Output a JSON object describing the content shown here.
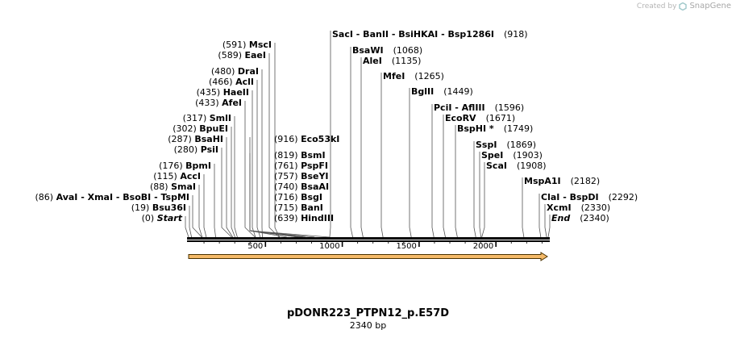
{
  "credit": {
    "prefix": "Created by",
    "brand": "SnapGene"
  },
  "map": {
    "title": "pDONR223_PTPN12_p.E57D",
    "length_label": "2340 bp",
    "length_bp": 2340,
    "ticks": [
      500,
      1000,
      1500,
      2000
    ],
    "colors": {
      "backbone": "#000000",
      "arrow_fill": "#f4b968",
      "arrow_stroke": "#4a3200",
      "leader": "#555555"
    }
  },
  "chart_data": {
    "type": "restriction-map",
    "title": "pDONR223_PTPN12_p.E57D",
    "subtitle": "2340 bp",
    "x_range_bp": [
      0,
      2340
    ],
    "axis_ticks": [
      500,
      1000,
      1500,
      2000
    ],
    "features": [
      {
        "name": "arrow",
        "start": 0,
        "end": 2340,
        "direction": "forward"
      }
    ],
    "sites": [
      {
        "pos": 918,
        "label": "SacI   - BanII   - BsiHKAI   - Bsp1286I",
        "num": "(918)",
        "side": "right"
      },
      {
        "pos": 1068,
        "label": "BsaWI",
        "num": "(1068)",
        "side": "right"
      },
      {
        "pos": 1135,
        "label": "AleI",
        "num": "(1135)",
        "side": "right"
      },
      {
        "pos": 1265,
        "label": "MfeI",
        "num": "(1265)",
        "side": "right"
      },
      {
        "pos": 1449,
        "label": "BglII",
        "num": "(1449)",
        "side": "right"
      },
      {
        "pos": 1596,
        "label": "PciI   - AflIII",
        "num": "(1596)",
        "side": "right"
      },
      {
        "pos": 1671,
        "label": "EcoRV",
        "num": "(1671)",
        "side": "right"
      },
      {
        "pos": 1749,
        "label": "BspHI *",
        "num": "(1749)",
        "side": "right"
      },
      {
        "pos": 1869,
        "label": "SspI",
        "num": "(1869)",
        "side": "right"
      },
      {
        "pos": 1903,
        "label": "SpeI",
        "num": "(1903)",
        "side": "right"
      },
      {
        "pos": 1908,
        "label": "ScaI",
        "num": "(1908)",
        "side": "right"
      },
      {
        "pos": 2182,
        "label": "MspA1I",
        "num": "(2182)",
        "side": "right"
      },
      {
        "pos": 2292,
        "label": "ClaI   - BspDI",
        "num": "(2292)",
        "side": "right"
      },
      {
        "pos": 2330,
        "label": "XcmI",
        "num": "(2330)",
        "side": "right"
      },
      {
        "pos": 2340,
        "label": "End",
        "num": "(2340)",
        "side": "right",
        "italic": true
      },
      {
        "pos": 591,
        "label": "MscI",
        "num": "(591)",
        "side": "left"
      },
      {
        "pos": 589,
        "label": "EaeI",
        "num": "(589)",
        "side": "left"
      },
      {
        "pos": 480,
        "label": "DraI",
        "num": "(480)",
        "side": "left"
      },
      {
        "pos": 466,
        "label": "AclI",
        "num": "(466)",
        "side": "left"
      },
      {
        "pos": 435,
        "label": "HaeII",
        "num": "(435)",
        "side": "left"
      },
      {
        "pos": 433,
        "label": "AfeI",
        "num": "(433)",
        "side": "left"
      },
      {
        "pos": 317,
        "label": "SmlI",
        "num": "(317)",
        "side": "left"
      },
      {
        "pos": 302,
        "label": "BpuEI",
        "num": "(302)",
        "side": "left"
      },
      {
        "pos": 287,
        "label": "BsaHI",
        "num": "(287)",
        "side": "left"
      },
      {
        "pos": 280,
        "label": "PsiI",
        "num": "(280)",
        "side": "left"
      },
      {
        "pos": 176,
        "label": "BpmI",
        "num": "(176)",
        "side": "left"
      },
      {
        "pos": 115,
        "label": "AccI",
        "num": "(115)",
        "side": "left"
      },
      {
        "pos": 88,
        "label": "SmaI",
        "num": "(88)",
        "side": "left"
      },
      {
        "pos": 86,
        "label": "AvaI   - XmaI   - BsoBI   - TspMI",
        "num": "(86)",
        "side": "left"
      },
      {
        "pos": 19,
        "label": "Bsu36I",
        "num": "(19)",
        "side": "left"
      },
      {
        "pos": 0,
        "label": "Start",
        "num": "(0)",
        "side": "left",
        "italic": true
      },
      {
        "pos": 916,
        "label": "Eco53kI",
        "num": "(916)",
        "side": "left"
      },
      {
        "pos": 819,
        "label": "BsmI",
        "num": "(819)",
        "side": "left"
      },
      {
        "pos": 761,
        "label": "PspFI",
        "num": "(761)",
        "side": "left"
      },
      {
        "pos": 757,
        "label": "BseYI",
        "num": "(757)",
        "side": "left"
      },
      {
        "pos": 740,
        "label": "BsaAI",
        "num": "(740)",
        "side": "left"
      },
      {
        "pos": 716,
        "label": "BsgI",
        "num": "(716)",
        "side": "left"
      },
      {
        "pos": 715,
        "label": "BanI",
        "num": "(715)",
        "side": "left"
      },
      {
        "pos": 639,
        "label": "HindIII",
        "num": "(639)",
        "side": "left"
      }
    ]
  }
}
